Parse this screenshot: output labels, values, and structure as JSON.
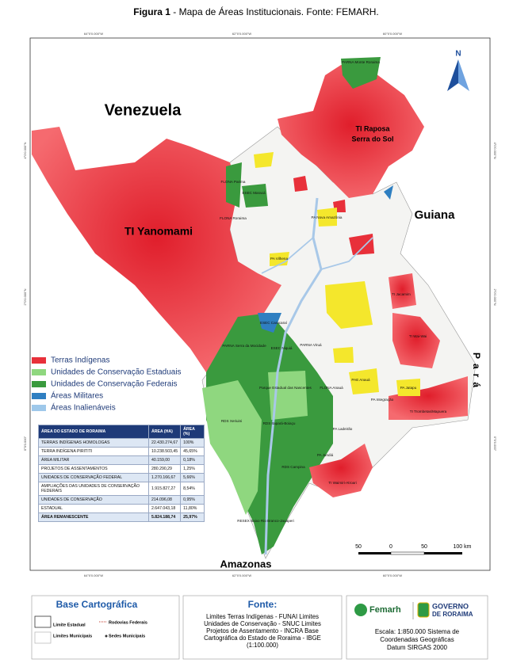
{
  "header": {
    "figure": "Figura 1",
    "title": "- Mapa de Áreas Institucionais. Fonte: FEMARH."
  },
  "map": {
    "coordinates": {
      "top": [
        "64°0'0.000\"W",
        "62°0'0.000\"W",
        "60°0'0.000\"W"
      ],
      "bottom": [
        "64°0'0.000\"W",
        "62°0'0.000\"W",
        "60°0'0.000\"W"
      ],
      "left": [
        "4°0'0.000\"N",
        "2°0'0.000\"N",
        "0°0'0.000\""
      ],
      "right": [
        "4°0'0.000\"N",
        "2°0'0.000\"N",
        "0°0'0.000\""
      ]
    },
    "regions": [
      "Venezuela",
      "Guiana",
      "Amazonas",
      "Pará"
    ],
    "labels": [
      "TI Yanomami",
      "TI Raposa",
      "Serra do Sol",
      "PARNA Monte Roraima",
      "FLONA Parima",
      "ESEC Maracá",
      "FLONA Roraima",
      "ESEC Caracaraí",
      "PARNA Serra da Mocidade",
      "ESEC Niquiá",
      "PARNA Viruá",
      "RDS Xeriuini",
      "RDS Itapará-Boiaçu",
      "Parque Estadual das Nascentes",
      "FLONA Anauá",
      "RDS Campina",
      "RESEX Baixo Rio Branco-Jauaperi",
      "TI Jacamim",
      "TI Wai-Wai",
      "TI Trombetas/Mapuera",
      "TI Waimiri-Atroari",
      "PA Jatapu",
      "PA Nova Amazônia",
      "PA Vilhena",
      "PA Jundiá",
      "PA Ladeirão",
      "PAE Anauá",
      "PA Integração"
    ],
    "north": "N",
    "scale": [
      "50",
      "0",
      "50",
      "100 km"
    ]
  },
  "legend": [
    {
      "label": "Terras Indígenas",
      "color": "#e8303a"
    },
    {
      "label": "Unidades de Conservação Estaduais",
      "color": "#8fd77f"
    },
    {
      "label": "Unidades de Conservação Federais",
      "color": "#3a9a3e"
    },
    {
      "label": "Áreas Militares",
      "color": "#2f7fc1"
    },
    {
      "label": "Áreas Inalienáveis",
      "color": "#9ec8ea"
    }
  ],
  "table": {
    "columns": [
      "ÁREA DO ESTADO DE RORAIMA",
      "ÁREA (HA)",
      "ÁREA (%)"
    ],
    "rows": [
      [
        "TERRAS INDÍGENAS HOMOLOGAS",
        "22.430.274,67",
        "100%"
      ],
      [
        "TERRA INDÍGENA PIRITITI",
        "10.238.503,45",
        "45,65%"
      ],
      [
        "ÁREA MILITAR",
        "40.159,00",
        "0,18%"
      ],
      [
        "PROJETOS DE ASSENTAMENTOS",
        "280.290,29",
        "1,25%"
      ],
      [
        "UNIDADES DE CONSERVAÇÃO FEDERAL",
        "1.270.166,67",
        "5,66%"
      ],
      [
        "AMPLIAÇÕES DAS UNIDADES DE CONSERVAÇÃO FEDERAIS",
        "1.915.827,27",
        "8,54%"
      ],
      [
        "UNIDADES DE CONSERVAÇÃO",
        "214.096,08",
        "0,95%"
      ],
      [
        "ESTADUAL",
        "2.647.043,18",
        "11,80%"
      ],
      [
        "ÁREA REMANESCENTE",
        "5.824.188,74",
        "25,97%"
      ]
    ]
  },
  "footer": {
    "base": {
      "title": "Base Cartográfica",
      "items": [
        "Limite Estadual",
        "Rodovias Federais",
        "Limites Municipais",
        "Sedes Municipais"
      ]
    },
    "fonte": {
      "title": "Fonte:",
      "lines": [
        "Limites Terras Indígenas - FUNAI Limites",
        "Unidades de Conservação - SNUC Limites",
        "Projetos de Assentamento - INCRA Base",
        "Cartográfica do Estado de Roraima - IBGE",
        "(1:100.000)"
      ]
    },
    "logos": [
      "Femarh",
      "GOVERNO",
      "DE RORAIMA"
    ],
    "escala": [
      "Escala: 1:850.000 Sistema de",
      "Coordenadas Geográficas",
      "Datum SIRGAS 2000"
    ]
  }
}
